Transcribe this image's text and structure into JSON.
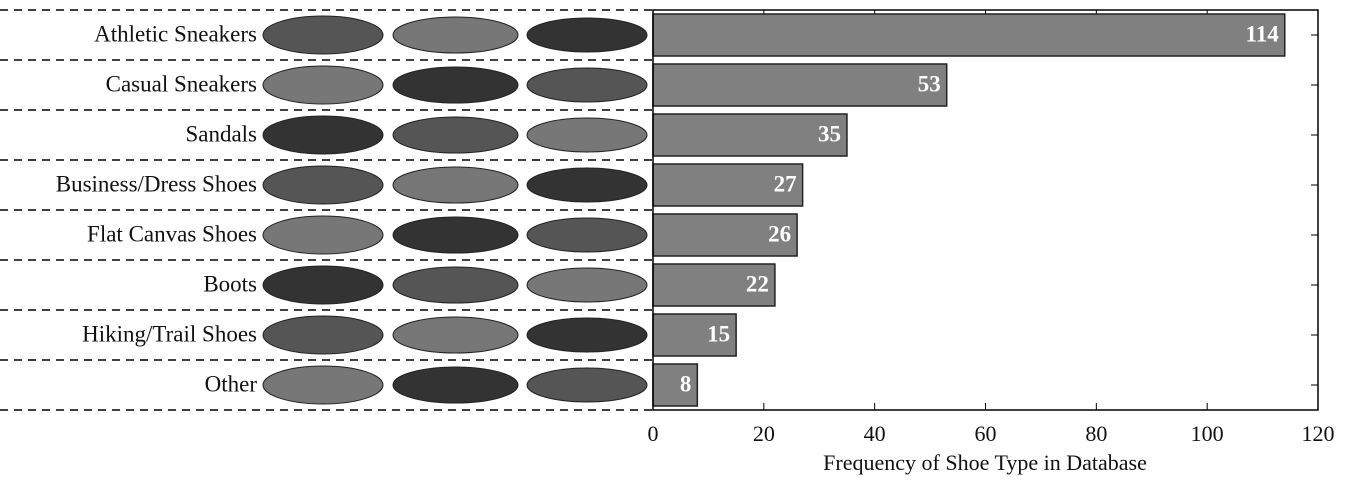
{
  "chart_data": {
    "type": "bar",
    "orientation": "horizontal",
    "categories": [
      "Athletic Sneakers",
      "Casual Sneakers",
      "Sandals",
      "Business/Dress Shoes",
      "Flat Canvas Shoes",
      "Boots",
      "Hiking/Trail Shoes",
      "Other"
    ],
    "values": [
      114,
      53,
      35,
      27,
      26,
      22,
      15,
      8
    ],
    "color": "#808080",
    "x_label": "Frequency of Shoe Type in Database",
    "xlim": [
      0,
      120
    ],
    "xticks": [
      0,
      20,
      40,
      60,
      80,
      100,
      120
    ]
  }
}
